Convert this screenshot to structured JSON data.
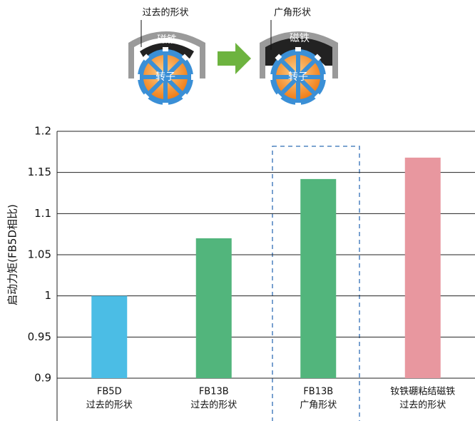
{
  "diagram": {
    "left": {
      "label": "过去的形状",
      "magnet": "磁铁",
      "rotor": "转子"
    },
    "right": {
      "label": "广角形状",
      "magnet": "磁铁",
      "rotor": "转子"
    }
  },
  "chart_data": {
    "type": "bar",
    "ylabel": "启动力矩(FB5D相比)",
    "categories": [
      [
        "FB5D",
        "过去的形状"
      ],
      [
        "FB13B",
        "过去的形状"
      ],
      [
        "FB13B",
        "广角形状"
      ],
      [
        "钕铁硼粘结磁铁",
        "过去的形状"
      ]
    ],
    "values": [
      1.0,
      1.07,
      1.142,
      1.168
    ],
    "colors": [
      "#4bbde5",
      "#52b57c",
      "#52b57c",
      "#e8979f"
    ],
    "ylim": [
      0.9,
      1.2
    ],
    "yticks": [
      0.9,
      0.95,
      1,
      1.05,
      1.1,
      1.15,
      1.2
    ],
    "grid": true
  }
}
